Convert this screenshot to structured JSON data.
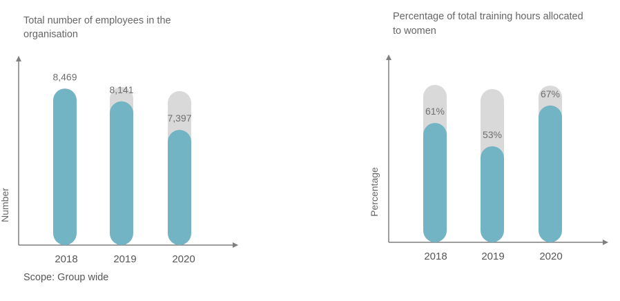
{
  "colors": {
    "bar_fill": "#72b4c4",
    "bar_track": "#d9d9d9",
    "axis": "#7f7f7f",
    "text": "#666666"
  },
  "chart_data": [
    {
      "type": "bar",
      "title": "Total number of employees in the organisation",
      "title_lines": [
        "Total number of employees in the",
        "organisation"
      ],
      "xlabel": "",
      "ylabel": "Number",
      "categories": [
        "2018",
        "2019",
        "2020"
      ],
      "values": [
        8469,
        8141,
        7397
      ],
      "value_labels": [
        "8,469",
        "8,141",
        "7,397"
      ],
      "ylim": [
        4400,
        9700
      ],
      "grid": false,
      "note": "Scope: Group wide"
    },
    {
      "type": "bar",
      "title": "Percentage of total training hours allocated to women",
      "title_lines": [
        "Percentage of total training hours allocated",
        "to women"
      ],
      "xlabel": "",
      "ylabel": "Percentage",
      "categories": [
        "2018",
        "2019",
        "2020"
      ],
      "values": [
        61,
        53,
        67
      ],
      "value_labels": [
        "61%",
        "53%",
        "67%"
      ],
      "ylim": [
        20,
        89
      ],
      "grid": false
    }
  ]
}
